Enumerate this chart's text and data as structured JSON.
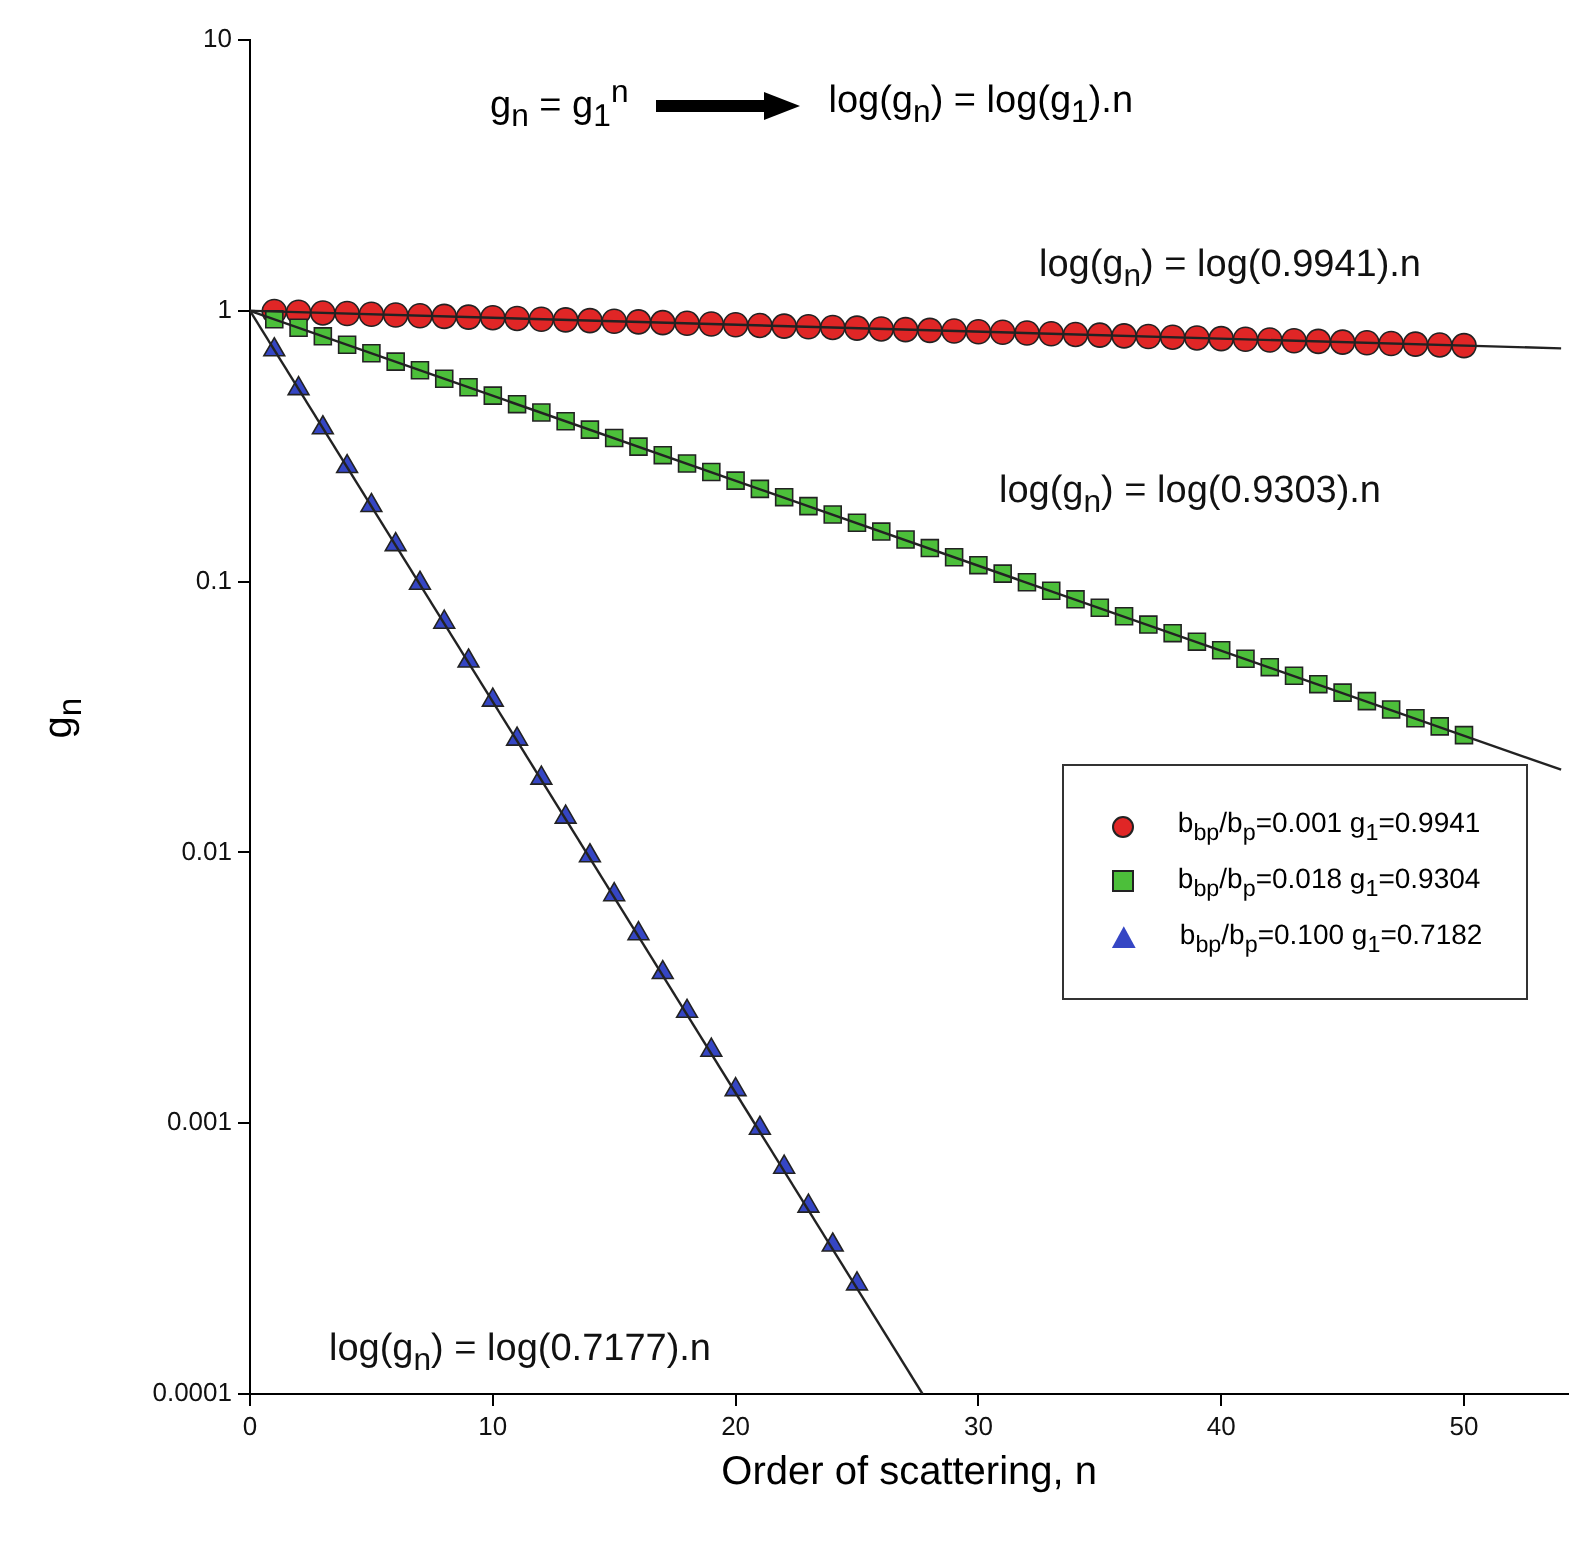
{
  "chart_data": {
    "type": "scatter",
    "xlabel": "Order of scattering, n",
    "ylabel": "g$_{n}$",
    "log": "y",
    "xlim": [
      0,
      54.3
    ],
    "xticks": [
      0,
      10,
      20,
      30,
      40,
      50
    ],
    "ylim": [
      0.0001,
      10
    ],
    "yticks": [
      0.0001,
      0.001,
      0.01,
      0.1,
      1,
      10
    ],
    "grid": false,
    "legend": "right",
    "annotations": [
      "g$_{n}$ = g$_{1}$$^{n}$",
      "log(g$_{n}$) = log(g$_{1}$).n",
      "log(g$_{n}$) = log(0.9941).n",
      "log(g$_{n}$) = log(0.9303).n",
      "log(g$_{n}$) = log(0.7177).n"
    ],
    "series": [
      {
        "type": "line",
        "color": "#222222",
        "marker": "none",
        "x": [
          0,
          54
        ],
        "values": [
          1,
          0.7265
        ]
      },
      {
        "type": "line",
        "color": "#222222",
        "marker": "none",
        "x": [
          0,
          54
        ],
        "values": [
          1,
          0.0202
        ]
      },
      {
        "type": "line",
        "color": "#222222",
        "marker": "none",
        "x": [
          0,
          27.7
        ],
        "values": [
          1,
          0.0001
        ]
      },
      {
        "type": "scatter",
        "name": "b$_{bp}$/b$_{p}$=0.001 g$_{1}$=0.9941",
        "color": "#e02626",
        "marker": "circle",
        "x": [
          1,
          2,
          3,
          4,
          5,
          6,
          7,
          8,
          9,
          10,
          11,
          12,
          13,
          14,
          15,
          16,
          17,
          18,
          19,
          20,
          21,
          22,
          23,
          24,
          25,
          26,
          27,
          28,
          29,
          30,
          31,
          32,
          33,
          34,
          35,
          36,
          37,
          38,
          39,
          40,
          41,
          42,
          43,
          44,
          45,
          46,
          47,
          48,
          49,
          50
        ],
        "values": [
          0.994,
          0.988,
          0.982,
          0.977,
          0.971,
          0.965,
          0.959,
          0.954,
          0.948,
          0.943,
          0.937,
          0.931,
          0.926,
          0.92,
          0.915,
          0.91,
          0.904,
          0.899,
          0.894,
          0.888,
          0.883,
          0.878,
          0.873,
          0.868,
          0.863,
          0.857,
          0.852,
          0.847,
          0.842,
          0.837,
          0.833,
          0.828,
          0.823,
          0.818,
          0.813,
          0.808,
          0.804,
          0.799,
          0.794,
          0.789,
          0.785,
          0.78,
          0.775,
          0.771,
          0.766,
          0.762,
          0.757,
          0.753,
          0.748,
          0.744
        ]
      },
      {
        "type": "scatter",
        "name": "b$_{bp}$/b$_{p}$=0.018 g$_{1}$=0.9304",
        "color": "#4cbf3a",
        "marker": "square",
        "x": [
          1,
          2,
          3,
          4,
          5,
          6,
          7,
          8,
          9,
          10,
          11,
          12,
          13,
          14,
          15,
          16,
          17,
          18,
          19,
          20,
          21,
          22,
          23,
          24,
          25,
          26,
          27,
          28,
          29,
          30,
          31,
          32,
          33,
          34,
          35,
          36,
          37,
          38,
          39,
          40,
          41,
          42,
          43,
          44,
          45,
          46,
          47,
          48,
          49,
          50
        ],
        "values": [
          0.93,
          0.866,
          0.805,
          0.749,
          0.697,
          0.649,
          0.603,
          0.561,
          0.522,
          0.486,
          0.452,
          0.421,
          0.391,
          0.364,
          0.339,
          0.315,
          0.293,
          0.273,
          0.254,
          0.236,
          0.22,
          0.205,
          0.19,
          0.177,
          0.165,
          0.153,
          0.143,
          0.133,
          0.123,
          0.115,
          0.107,
          0.0994,
          0.0925,
          0.086,
          0.0801,
          0.0745,
          0.0694,
          0.0645,
          0.06,
          0.0558,
          0.0519,
          0.0483,
          0.0449,
          0.0418,
          0.0389,
          0.0362,
          0.0337,
          0.0313,
          0.0292,
          0.0271
        ]
      },
      {
        "type": "scatter",
        "name": "b$_{bp}$/b$_{p}$=0.100 g$_{1}$=0.7182",
        "color": "#3546c4",
        "marker": "triangle",
        "x": [
          1,
          2,
          3,
          4,
          5,
          6,
          7,
          8,
          9,
          10,
          11,
          12,
          13,
          14,
          15,
          16,
          17,
          18,
          19,
          20,
          21,
          22,
          23,
          24,
          25
        ],
        "values": [
          0.718,
          0.516,
          0.37,
          0.266,
          0.191,
          0.137,
          0.0986,
          0.0708,
          0.0509,
          0.0365,
          0.0262,
          0.0188,
          0.0135,
          0.00972,
          0.00698,
          0.00501,
          0.0036,
          0.00259,
          0.00186,
          0.00133,
          0.000958,
          0.000688,
          0.000494,
          0.000355,
          0.000255
        ]
      }
    ]
  }
}
